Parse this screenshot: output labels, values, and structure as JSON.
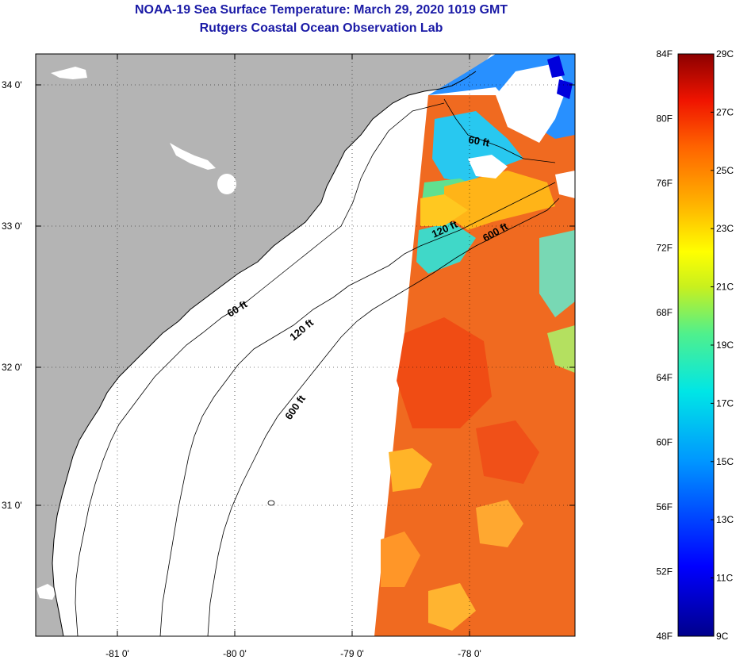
{
  "header": {
    "title": "NOAA-19 Sea Surface Temperature:  March 29, 2020 1019 GMT",
    "subtitle": "Rutgers Coastal Ocean Observation Lab"
  },
  "map": {
    "lat_ticks": [
      {
        "value": 34,
        "label": "34 0'"
      },
      {
        "value": 33,
        "label": "33 0'"
      },
      {
        "value": 32,
        "label": "32 0'"
      },
      {
        "value": 31,
        "label": "31 0'"
      }
    ],
    "lon_ticks": [
      {
        "value": -81,
        "label": "-81 0'"
      },
      {
        "value": -80,
        "label": "-80 0'"
      },
      {
        "value": -79,
        "label": "-79 0'"
      },
      {
        "value": -78,
        "label": "-78 0'"
      }
    ],
    "contour_labels": [
      "60 ft",
      "120 ft",
      "600 ft",
      "60 ft",
      "120 ft",
      "600 ft"
    ],
    "colors": {
      "land": "#b4b4b4",
      "no_data": "#ffffff",
      "warm": "#f0641e",
      "cool": "#28a0ff"
    }
  },
  "colorbar": {
    "fahrenheit_labels": [
      "84F",
      "80F",
      "76F",
      "72F",
      "68F",
      "64F",
      "60F",
      "56F",
      "52F",
      "48F"
    ],
    "celsius_labels": [
      "29C",
      "27C",
      "25C",
      "23C",
      "21C",
      "19C",
      "17C",
      "15C",
      "13C",
      "11C",
      "9C"
    ],
    "range_f": [
      48,
      84
    ],
    "range_c": [
      9,
      29
    ]
  }
}
